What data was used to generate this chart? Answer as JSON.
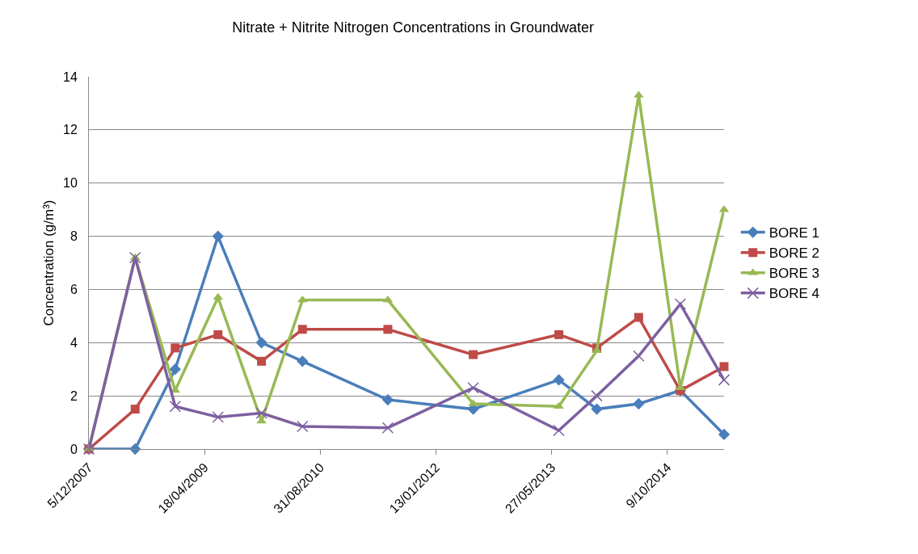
{
  "chart_data": {
    "type": "line",
    "title": "Nitrate + Nitrite Nitrogen Concentrations in Groundwater",
    "ylabel": "Concentration (g/m³)",
    "x": [
      "2007-12-05",
      "2008-06-22",
      "2008-12-12",
      "2009-06-15",
      "2009-12-20",
      "2010-06-15",
      "2011-06-19",
      "2012-06-22",
      "2013-06-27",
      "2013-12-08",
      "2014-06-07",
      "2014-12-04",
      "2015-06-11"
    ],
    "xlim": [
      "2007-12-05",
      "2015-06-11"
    ],
    "xticks": [
      {
        "value": "2007-12-05",
        "label": "5/12/2007"
      },
      {
        "value": "2009-04-18",
        "label": "18/04/2009"
      },
      {
        "value": "2010-08-31",
        "label": "31/08/2010"
      },
      {
        "value": "2012-01-13",
        "label": "13/01/2012"
      },
      {
        "value": "2013-05-27",
        "label": "27/05/2013"
      },
      {
        "value": "2014-10-09",
        "label": "9/10/2014"
      }
    ],
    "ylim": [
      0,
      14
    ],
    "yticks": [
      0,
      2,
      4,
      6,
      8,
      10,
      12,
      14
    ],
    "grid": "y",
    "legend": "right",
    "line_style": "solid",
    "series": [
      {
        "name": "BORE 1",
        "color": "#4a7ebb",
        "marker": "diamond",
        "values": [
          0,
          0,
          3.0,
          8.0,
          4.0,
          3.3,
          1.85,
          1.5,
          2.6,
          1.5,
          1.7,
          2.2,
          0.55
        ]
      },
      {
        "name": "BORE 2",
        "color": "#be4b48",
        "marker": "square",
        "values": [
          0,
          1.5,
          3.8,
          4.3,
          3.3,
          4.5,
          4.5,
          3.55,
          4.3,
          3.8,
          4.95,
          2.2,
          3.1
        ]
      },
      {
        "name": "BORE 3",
        "color": "#98b954",
        "marker": "triangle",
        "values": [
          0,
          7.2,
          2.2,
          5.7,
          1.05,
          5.6,
          5.6,
          1.7,
          1.6,
          3.7,
          13.3,
          2.3,
          9.0
        ]
      },
      {
        "name": "BORE 4",
        "color": "#7d60a0",
        "marker": "cross",
        "values": [
          0,
          7.2,
          1.6,
          1.2,
          1.35,
          0.85,
          0.8,
          2.3,
          0.7,
          2.0,
          3.5,
          5.45,
          2.6
        ]
      }
    ]
  }
}
